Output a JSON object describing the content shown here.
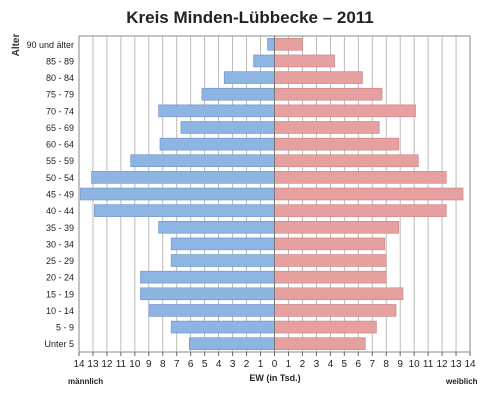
{
  "chart_data": {
    "type": "bar",
    "orientation": "horizontal",
    "title": "Kreis Minden-Lübbecke – 2011",
    "ylabel": "Alter",
    "xlabel": "EW (in Tsd.)",
    "left_label": "männlich",
    "right_label": "weiblich",
    "xlim": [
      -14,
      14
    ],
    "x_ticks": [
      "14",
      "13",
      "12",
      "11",
      "10",
      "9",
      "8",
      "7",
      "6",
      "5",
      "4",
      "3",
      "2",
      "1",
      "0",
      "1",
      "2",
      "3",
      "4",
      "5",
      "6",
      "7",
      "8",
      "9",
      "10",
      "11",
      "12",
      "13",
      "14"
    ],
    "grid": true,
    "categories": [
      "90 und älter",
      "85 - 89",
      "80 - 84",
      "75 - 79",
      "70 - 74",
      "65 - 69",
      "60 - 64",
      "55 - 59",
      "50 - 54",
      "45 - 49",
      "40 - 44",
      "35 - 39",
      "30 - 34",
      "25 - 29",
      "20 - 24",
      "15 - 19",
      "10 - 14",
      "5 - 9",
      "Unter 5"
    ],
    "series": [
      {
        "name": "männlich",
        "color": "#8db4e2",
        "values": [
          0.5,
          1.5,
          3.6,
          5.2,
          8.3,
          6.7,
          8.2,
          10.3,
          13.1,
          13.9,
          12.9,
          8.3,
          7.4,
          7.4,
          9.6,
          9.6,
          9.0,
          7.4,
          6.1
        ]
      },
      {
        "name": "weiblich",
        "color": "#e6a0a0",
        "values": [
          2.0,
          4.3,
          6.3,
          7.7,
          10.1,
          7.5,
          8.9,
          10.3,
          12.3,
          13.5,
          12.3,
          8.9,
          7.9,
          8.0,
          8.0,
          9.2,
          8.7,
          7.3,
          6.5
        ]
      }
    ]
  }
}
